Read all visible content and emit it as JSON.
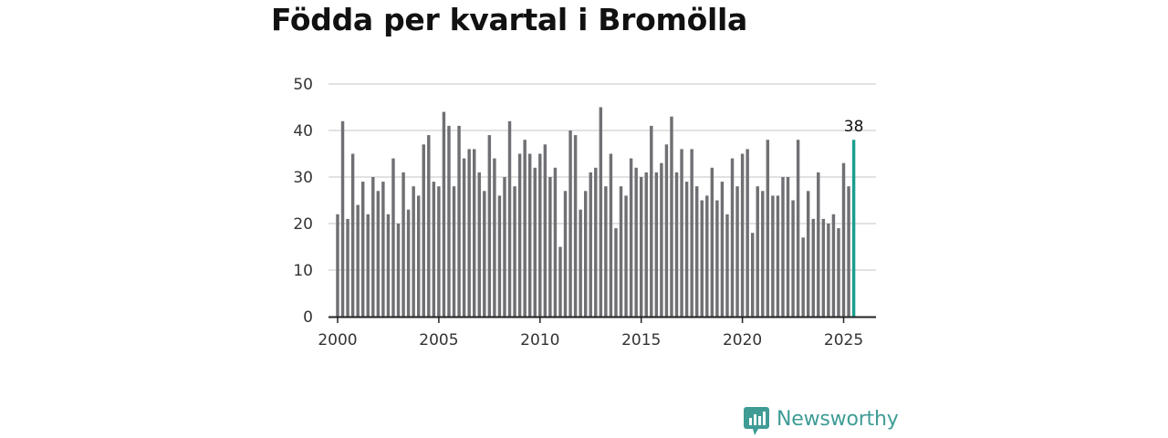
{
  "chart_data": {
    "type": "bar",
    "title": "Födda per kvartal i Bromölla",
    "xlabel": "",
    "ylabel": "",
    "x_start": 2000,
    "x_step": 0.25,
    "xlim": [
      1999.55,
      2026.6
    ],
    "ylim": [
      0,
      50
    ],
    "y_ticks": [
      "0",
      "10",
      "20",
      "30",
      "40",
      "50"
    ],
    "x_ticks": [
      "2000",
      "2005",
      "2010",
      "2015",
      "2020",
      "2025"
    ],
    "grid": true,
    "bar_color": "#707074",
    "highlight_color": "#1a9e8f",
    "highlight_label": "38",
    "values": [
      22,
      42,
      21,
      35,
      24,
      29,
      22,
      30,
      27,
      29,
      22,
      34,
      20,
      31,
      23,
      28,
      26,
      37,
      39,
      29,
      28,
      44,
      41,
      28,
      41,
      34,
      36,
      36,
      31,
      27,
      39,
      34,
      26,
      30,
      42,
      28,
      35,
      38,
      35,
      32,
      35,
      37,
      30,
      32,
      15,
      27,
      40,
      39,
      23,
      27,
      31,
      32,
      45,
      28,
      35,
      19,
      28,
      26,
      34,
      32,
      30,
      31,
      41,
      31,
      33,
      37,
      43,
      31,
      36,
      29,
      36,
      28,
      25,
      26,
      32,
      25,
      29,
      22,
      34,
      28,
      35,
      36,
      18,
      28,
      27,
      38,
      26,
      26,
      30,
      30,
      25,
      38,
      17,
      27,
      21,
      31,
      21,
      20,
      22,
      19,
      33,
      28,
      38
    ]
  },
  "brand": {
    "name": "Newsworthy",
    "color": "#3f9c95"
  }
}
